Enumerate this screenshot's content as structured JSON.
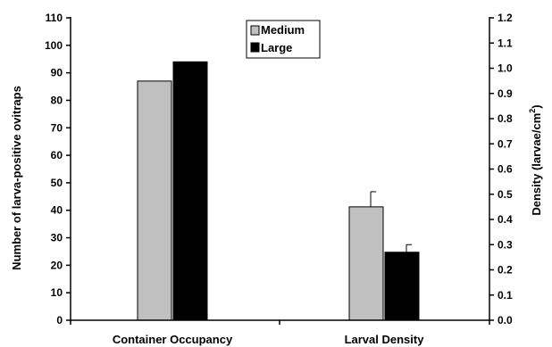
{
  "chart_data": {
    "type": "bar",
    "categories": [
      "Container Occupancy",
      "Larval Density"
    ],
    "series": [
      {
        "name": "Medium",
        "color": "#c0c0c0",
        "left_values": [
          87,
          null
        ],
        "right_values": [
          null,
          0.45
        ],
        "right_errors": [
          null,
          0.06
        ]
      },
      {
        "name": "Large",
        "color": "#000000",
        "left_values": [
          94,
          null
        ],
        "right_values": [
          null,
          0.27
        ],
        "right_errors": [
          null,
          0.03
        ]
      }
    ],
    "left_axis": {
      "label": "Number of larva-positive ovitraps",
      "min": 0,
      "max": 110,
      "step": 10,
      "ticks": [
        "0",
        "10",
        "20",
        "30",
        "40",
        "50",
        "60",
        "70",
        "80",
        "90",
        "100",
        "110"
      ]
    },
    "right_axis": {
      "label_main": "Density (larvae/cm",
      "label_sup": "2",
      "label_end": ")",
      "min": 0,
      "max": 1.2,
      "step": 0.1,
      "ticks": [
        "0.0",
        "0.1",
        "0.2",
        "0.3",
        "0.4",
        "0.5",
        "0.6",
        "0.7",
        "0.8",
        "0.9",
        "1.0",
        "1.1",
        "1.2"
      ]
    },
    "legend_position": "top-center",
    "grid": false
  }
}
